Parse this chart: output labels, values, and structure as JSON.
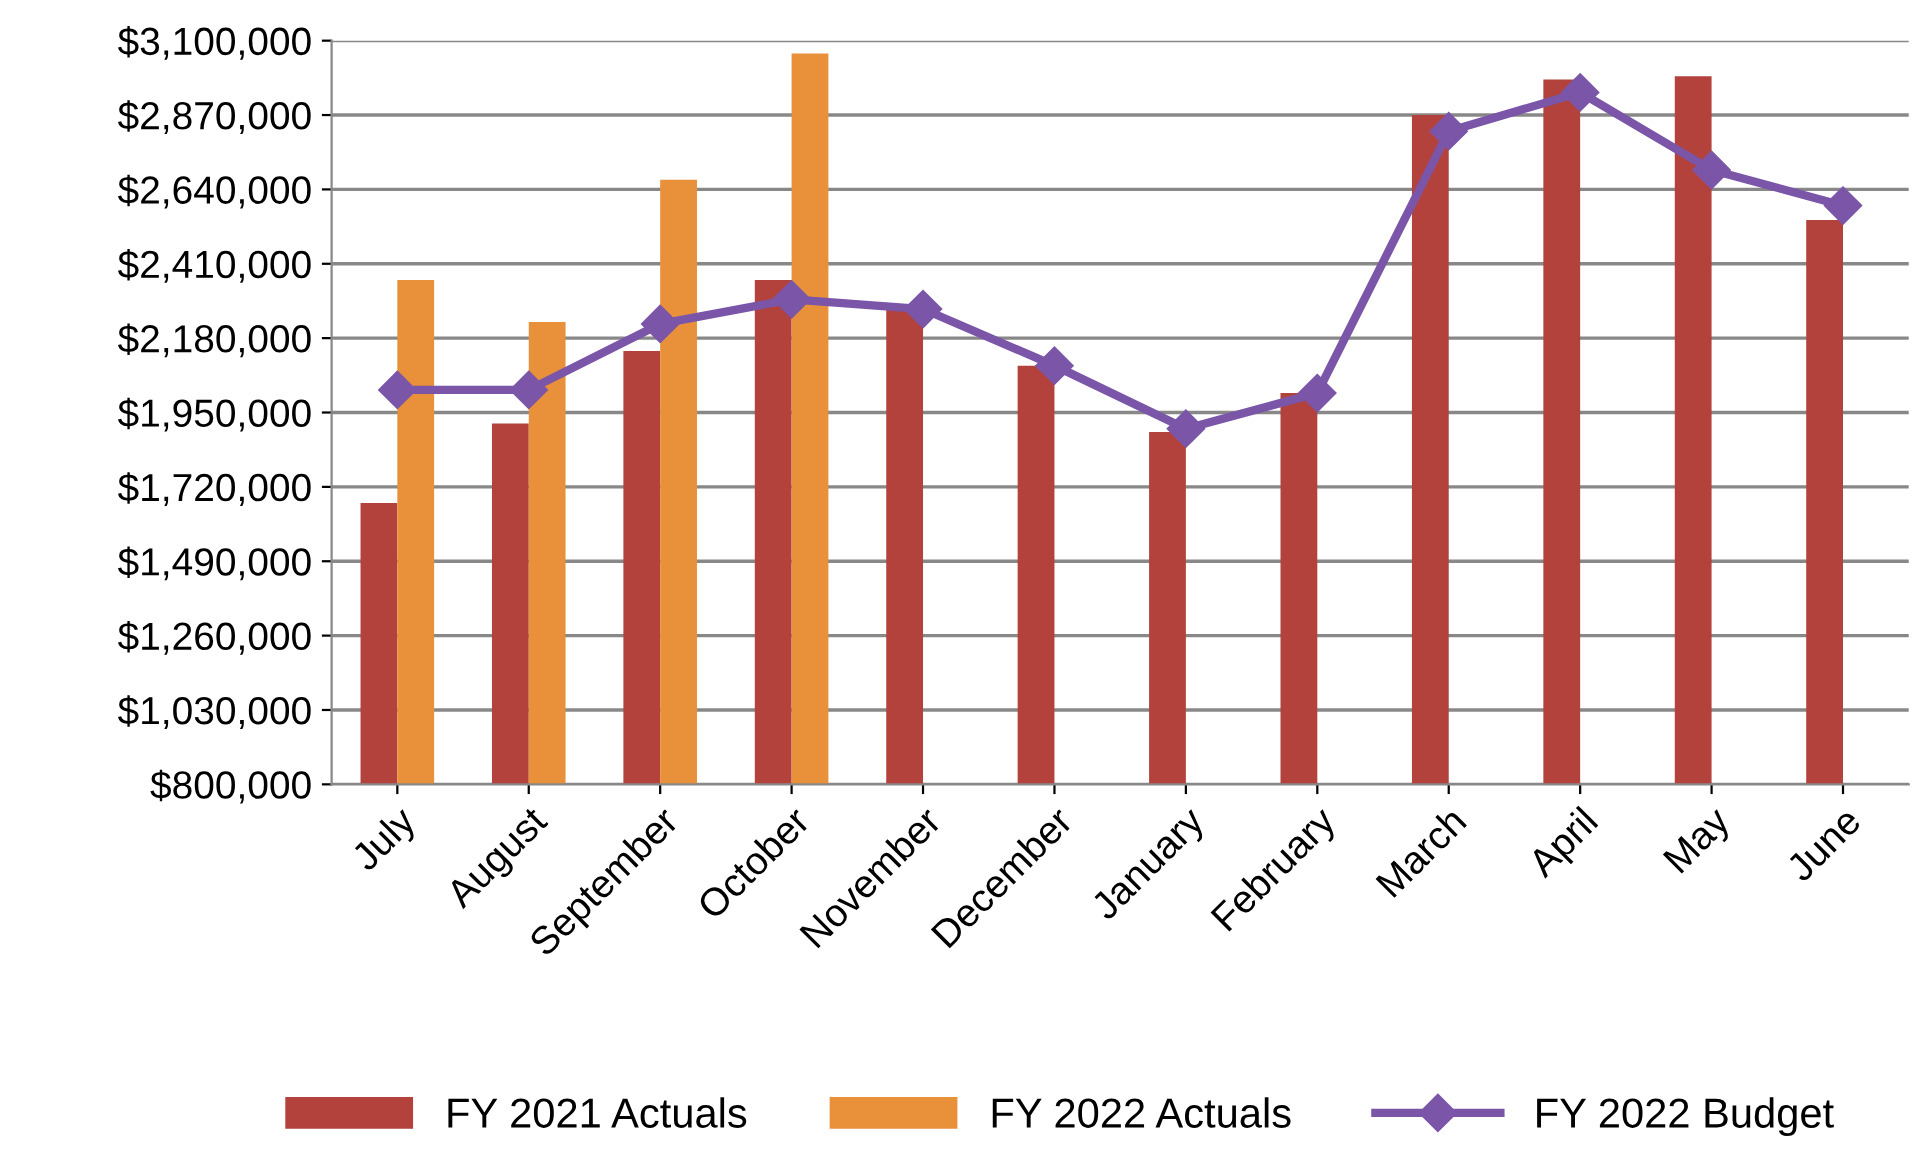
{
  "chart_data": {
    "type": "bar",
    "categories": [
      "July",
      "August",
      "September",
      "October",
      "November",
      "December",
      "January",
      "February",
      "March",
      "April",
      "May",
      "June"
    ],
    "series": [
      {
        "name": "FY 2021 Actuals",
        "color": "#b3423c",
        "values": [
          1670000,
          1916000,
          2140000,
          2360000,
          2270000,
          2095000,
          1890000,
          2010000,
          2870000,
          2980000,
          2990000,
          2545000
        ]
      },
      {
        "name": "FY 2022 Actuals",
        "color": "#e8913a",
        "values": [
          2360000,
          2230000,
          2670000,
          3060000,
          null,
          null,
          null,
          null,
          null,
          null,
          null,
          null
        ]
      },
      {
        "name": "FY 2022 Budget",
        "color": "#7a55a8",
        "type": "line",
        "marker": "diamond",
        "values": [
          2020000,
          2020000,
          2224000,
          2300000,
          2270000,
          2095000,
          1900000,
          2010000,
          2820000,
          2940000,
          2700000,
          2590000
        ]
      }
    ],
    "ylim": [
      800000,
      3100000
    ],
    "yticks": [
      {
        "value": 800000,
        "label": "$800,000"
      },
      {
        "value": 1030000,
        "label": "$1,030,000"
      },
      {
        "value": 1260000,
        "label": "$1,260,000"
      },
      {
        "value": 1490000,
        "label": "$1,490,000"
      },
      {
        "value": 1720000,
        "label": "$1,720,000"
      },
      {
        "value": 1950000,
        "label": "$1,950,000"
      },
      {
        "value": 2180000,
        "label": "$2,180,000"
      },
      {
        "value": 2410000,
        "label": "$2,410,000"
      },
      {
        "value": 2640000,
        "label": "$2,640,000"
      },
      {
        "value": 2870000,
        "label": "$2,870,000"
      },
      {
        "value": 3100000,
        "label": "$3,100,000"
      }
    ],
    "grid": "y",
    "legend": "bottom"
  }
}
